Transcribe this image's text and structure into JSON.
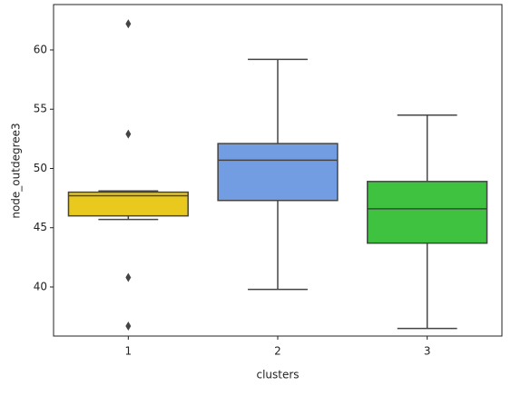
{
  "chart_data": {
    "type": "box",
    "x_label": "clusters",
    "y_label": "node_outdegree3",
    "categories": [
      "1",
      "2",
      "3"
    ],
    "boxes": [
      {
        "color": "#eac91f",
        "min": 45.7,
        "q1": 46.0,
        "median": 47.7,
        "q3": 48.0,
        "max": 48.1,
        "outliers": [
          62.2,
          52.9,
          40.8,
          36.7
        ]
      },
      {
        "color": "#739de3",
        "min": 39.8,
        "q1": 47.3,
        "median": 50.7,
        "q3": 52.1,
        "max": 59.2,
        "outliers": []
      },
      {
        "color": "#3fc23f",
        "min": 36.5,
        "q1": 43.7,
        "median": 46.6,
        "q3": 48.9,
        "max": 54.5,
        "outliers": []
      }
    ],
    "ylim": [
      35.86,
      63.83
    ],
    "yticks": [
      40,
      45,
      50,
      55,
      60
    ]
  }
}
